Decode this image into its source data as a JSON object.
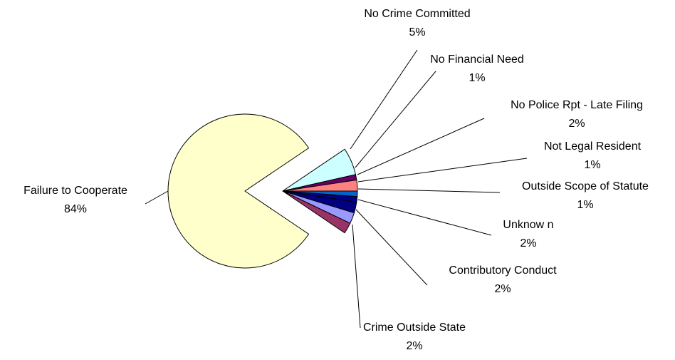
{
  "chart_data": {
    "type": "pie",
    "title": "",
    "exploded": true,
    "slices": [
      {
        "name": "No Crime Committed",
        "label_pct": "5%",
        "value": 5,
        "color": "#CCFFFF"
      },
      {
        "name": "No Financial Need",
        "label_pct": "1%",
        "value": 1,
        "color": "#660066"
      },
      {
        "name": "No Police Rpt - Late Filing",
        "label_pct": "2%",
        "value": 2,
        "color": "#FF8080"
      },
      {
        "name": "Not Legal Resident",
        "label_pct": "1%",
        "value": 1,
        "color": "#0066CC"
      },
      {
        "name": "Outside Scope of Statute",
        "label_pct": "1%",
        "value": 1,
        "color": "#000080"
      },
      {
        "name": "Unknow n",
        "label_pct": "2%",
        "value": 2,
        "color": "#000080"
      },
      {
        "name": "Contributory Conduct",
        "label_pct": "2%",
        "value": 2,
        "color": "#9999FF"
      },
      {
        "name": "Crime Outside State",
        "label_pct": "2%",
        "value": 2,
        "color": "#993366"
      },
      {
        "name": "Failure to Cooperate",
        "label_pct": "84%",
        "value": 84,
        "color": "#FFFFCC"
      }
    ]
  }
}
